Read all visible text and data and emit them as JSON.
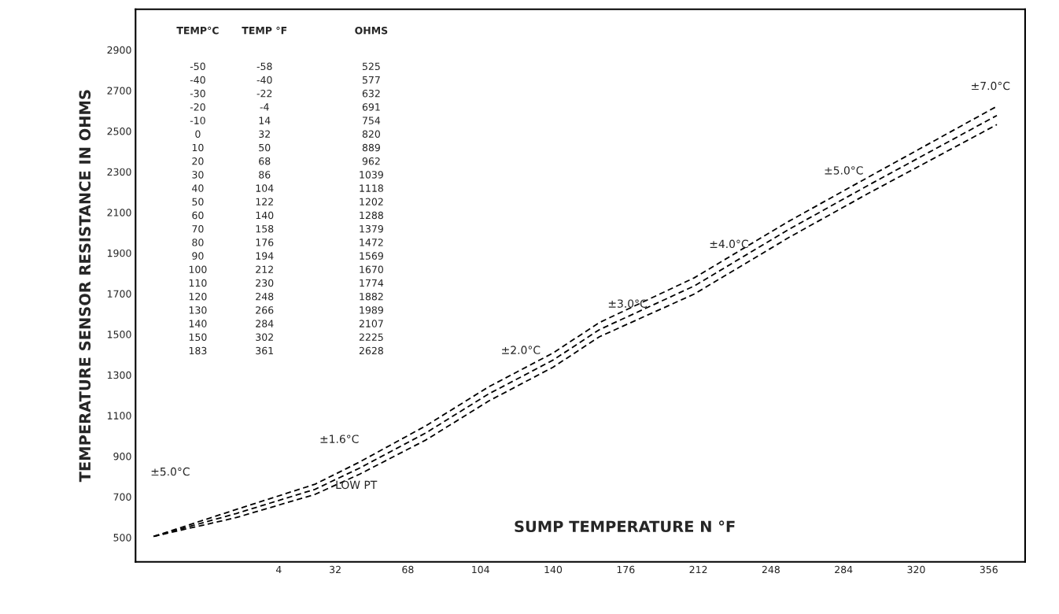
{
  "chart_data": {
    "type": "line",
    "xlabel": "SUMP TEMPERATURE N °F",
    "ylabel": "TEMPERATURE SENSOR RESISTANCE IN OHMS",
    "x": [
      -58,
      -17,
      22,
      44,
      77,
      108,
      140,
      163,
      210,
      257,
      296,
      360
    ],
    "series": [
      {
        "color": "#000000",
        "values": [
          505,
          638,
          762,
          871,
          1050,
          1241,
          1408,
          1558,
          1778,
          2057,
          2272,
          2622
        ]
      },
      {
        "color": "#000000",
        "values": [
          505,
          618,
          737,
          841,
          1015,
          1206,
          1373,
          1523,
          1738,
          2017,
          2232,
          2577
        ]
      },
      {
        "color": "#000000",
        "values": [
          505,
          598,
          712,
          811,
          980,
          1171,
          1338,
          1488,
          1698,
          1977,
          2192,
          2532
        ]
      }
    ],
    "line_style": "dashed",
    "marker": "none",
    "grid": false,
    "xlim": [
      -67,
      374
    ],
    "xticks": [
      4,
      32,
      68,
      104,
      140,
      176,
      212,
      248,
      284,
      320,
      356
    ],
    "ylim": [
      380,
      3100
    ],
    "yticks": [
      500,
      700,
      900,
      1100,
      1300,
      1500,
      1700,
      1900,
      2100,
      2300,
      2500,
      2700,
      2900
    ],
    "annotations": [
      "±5.0°C",
      "±1.6°C",
      "LOW PT",
      "±2.0°C",
      "±3.0°C",
      "±4.0°C",
      "±5.0°C",
      "±7.0°C",
      "TEMP°C",
      "TEMP °F",
      "OHMS",
      "-50",
      "-58",
      "525",
      "-40",
      "-40",
      "577",
      "-30",
      "-22",
      "632",
      "-20",
      "-4",
      "691",
      "-10",
      "14",
      "754",
      "0",
      "32",
      "820",
      "10",
      "50",
      "889",
      "20",
      "68",
      "962",
      "30",
      "86",
      "1039",
      "40",
      "104",
      "1118",
      "50",
      "122",
      "1202",
      "60",
      "140",
      "1288",
      "70",
      "158",
      "1379",
      "80",
      "176",
      "1472",
      "90",
      "194",
      "1569",
      "100",
      "212",
      "1670",
      "110",
      "230",
      "1774",
      "120",
      "248",
      "1882",
      "130",
      "266",
      "1989",
      "140",
      "284",
      "2107",
      "150",
      "302",
      "2225",
      "183",
      "361",
      "2628"
    ]
  }
}
